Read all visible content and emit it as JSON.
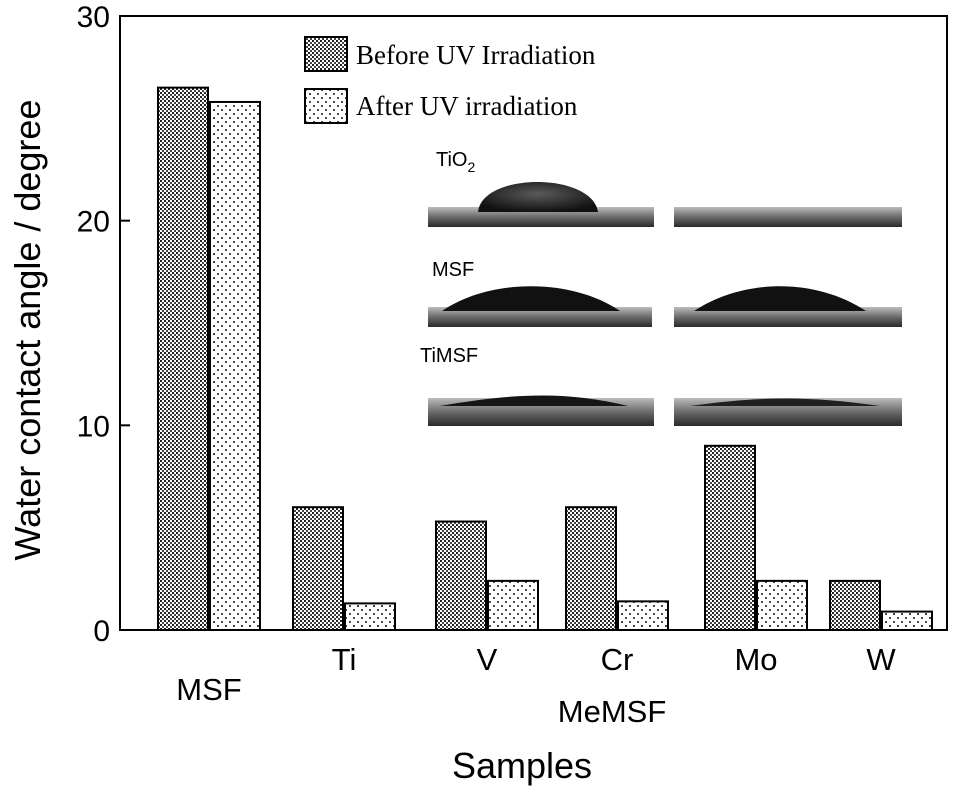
{
  "chart_data": {
    "type": "bar",
    "title": "",
    "ylabel": "Water contact angle / degree",
    "xlabel": "Samples",
    "group_label": "MeMSF",
    "ylim": [
      0,
      30
    ],
    "yticks": [
      "0",
      "10",
      "20",
      "30"
    ],
    "categories": [
      "MSF",
      "Ti",
      "V",
      "Cr",
      "Mo",
      "W"
    ],
    "series": [
      {
        "name": "Before UV Irradiation",
        "values": [
          26.5,
          6.0,
          5.3,
          6.0,
          9.0,
          2.4
        ]
      },
      {
        "name": "After UV irradiation",
        "values": [
          25.8,
          1.3,
          2.4,
          1.4,
          2.4,
          0.9
        ]
      }
    ],
    "legend_position": "top",
    "inset": {
      "labels": [
        {
          "base": "TiO",
          "sub": "2"
        },
        {
          "base": "MSF",
          "sub": ""
        },
        {
          "base": "TiMSF",
          "sub": ""
        }
      ]
    },
    "colors": {
      "before_fill": "#9a9a9a",
      "after_fill": "#f2f2f2",
      "ink": "#000000"
    }
  }
}
